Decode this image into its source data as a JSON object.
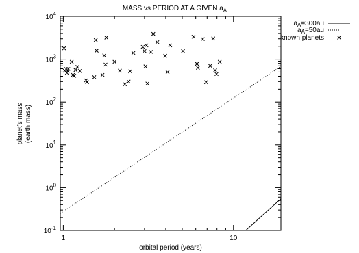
{
  "chart_data": {
    "type": "scatter",
    "title_prefix": "MASS vs PERIOD AT A GIVEN a",
    "title_sub": "A",
    "xlabel": "orbital period (years)",
    "ylabel_line1": "planet's mass",
    "ylabel_line2": "(earth mass)",
    "x_scale": "log",
    "y_scale": "log",
    "xlim": [
      0.96,
      19.0
    ],
    "ylim": [
      0.1,
      10000
    ],
    "grid": false,
    "legend_position": "top-right outside",
    "x_ticks": [
      {
        "value": 1,
        "label": "1"
      },
      {
        "value": 10,
        "label": "10"
      }
    ],
    "y_ticks": [
      {
        "value": 0.1,
        "base": "10",
        "exp": "-1"
      },
      {
        "value": 1,
        "base": "10",
        "exp": "0"
      },
      {
        "value": 10,
        "base": "10",
        "exp": "1"
      },
      {
        "value": 100,
        "base": "10",
        "exp": "2"
      },
      {
        "value": 1000,
        "base": "10",
        "exp": "3"
      },
      {
        "value": 10000,
        "base": "10",
        "exp": "4"
      }
    ],
    "series": [
      {
        "name_prefix": "a",
        "name_sub": "A",
        "name_suffix": "=300au",
        "kind": "line",
        "style": "solid",
        "color": "#000000",
        "x": [
          11.8,
          19.0
        ],
        "y": [
          0.1,
          0.55
        ]
      },
      {
        "name_prefix": "a",
        "name_sub": "A",
        "name_suffix": "=50au",
        "kind": "line",
        "style": "dotted",
        "color": "#000000",
        "x": [
          0.96,
          19.0
        ],
        "y": [
          0.25,
          680
        ]
      },
      {
        "name": "known planets",
        "kind": "points",
        "marker": "x",
        "color": "#000000",
        "x": [
          1.01,
          1.02,
          1.04,
          1.05,
          1.06,
          1.07,
          1.12,
          1.14,
          1.16,
          1.18,
          1.21,
          1.25,
          1.36,
          1.38,
          1.52,
          1.55,
          1.57,
          1.7,
          1.74,
          1.77,
          1.79,
          2.0,
          2.15,
          2.3,
          2.42,
          2.47,
          2.58,
          2.93,
          3.0,
          3.04,
          3.08,
          3.12,
          3.27,
          3.38,
          3.57,
          3.97,
          4.1,
          4.25,
          5.05,
          5.82,
          6.1,
          6.18,
          6.6,
          6.9,
          7.3,
          7.6,
          7.8,
          7.95,
          8.3
        ],
        "y": [
          1800,
          540,
          590,
          480,
          530,
          590,
          870,
          430,
          410,
          560,
          660,
          530,
          320,
          290,
          380,
          2800,
          1580,
          430,
          1220,
          750,
          3200,
          870,
          540,
          260,
          300,
          520,
          1400,
          1940,
          1550,
          680,
          2100,
          270,
          1480,
          3900,
          2500,
          1200,
          500,
          2100,
          1550,
          3350,
          780,
          630,
          2950,
          290,
          700,
          3050,
          550,
          450,
          870
        ]
      }
    ]
  }
}
